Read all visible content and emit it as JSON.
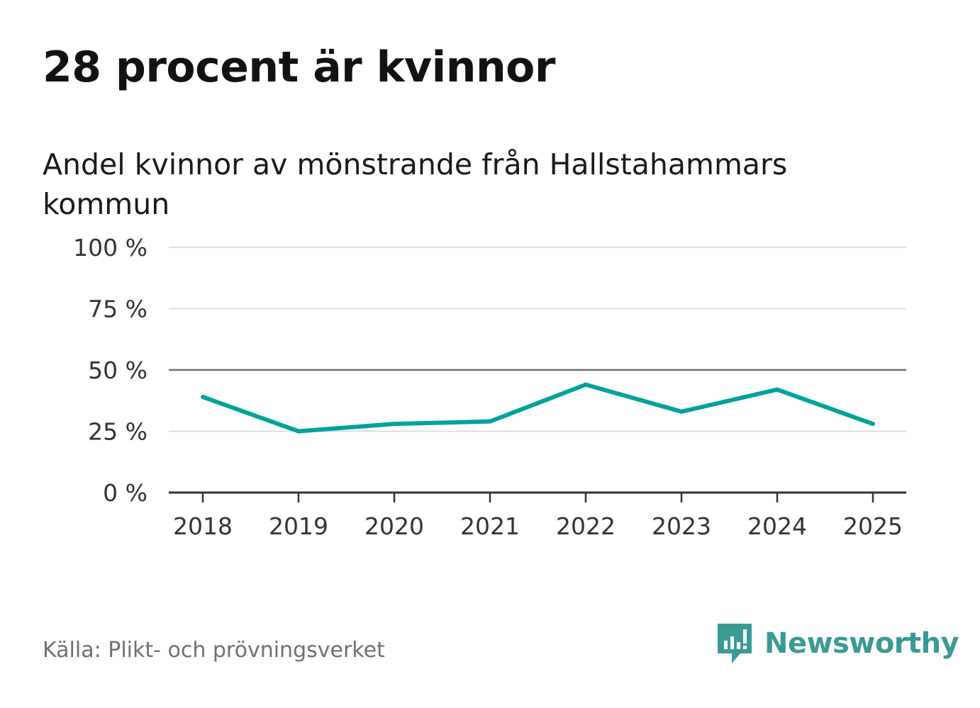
{
  "title": "28 procent är kvinnor",
  "subtitle": "Andel kvinnor av mönstrande från Hallstahammars kommun",
  "source": "Källa: Plikt- och prövningsverket",
  "brand": {
    "name": "Newsworthy",
    "icon": "newsworthy-logo-icon",
    "color": "#3b9a94"
  },
  "colors": {
    "line": "#00a39a",
    "grid": "#dddddd",
    "ref": "#707070",
    "axis": "#333333",
    "text": "#333333"
  },
  "chart_data": {
    "type": "line",
    "title": "28 procent är kvinnor",
    "subtitle": "Andel kvinnor av mönstrande från Hallstahammars kommun",
    "xlabel": "",
    "ylabel": "",
    "categories": [
      "2018",
      "2019",
      "2020",
      "2021",
      "2022",
      "2023",
      "2024",
      "2025"
    ],
    "series": [
      {
        "name": "Andel kvinnor",
        "values": [
          39,
          25,
          28,
          29,
          44,
          33,
          42,
          28
        ]
      }
    ],
    "ylim": [
      0,
      100
    ],
    "yticks": [
      0,
      25,
      50,
      75,
      100
    ],
    "ytick_labels": [
      "0 %",
      "25 %",
      "50 %",
      "75 %",
      "100 %"
    ],
    "reference_line": 50,
    "grid": true,
    "legend": "none"
  }
}
